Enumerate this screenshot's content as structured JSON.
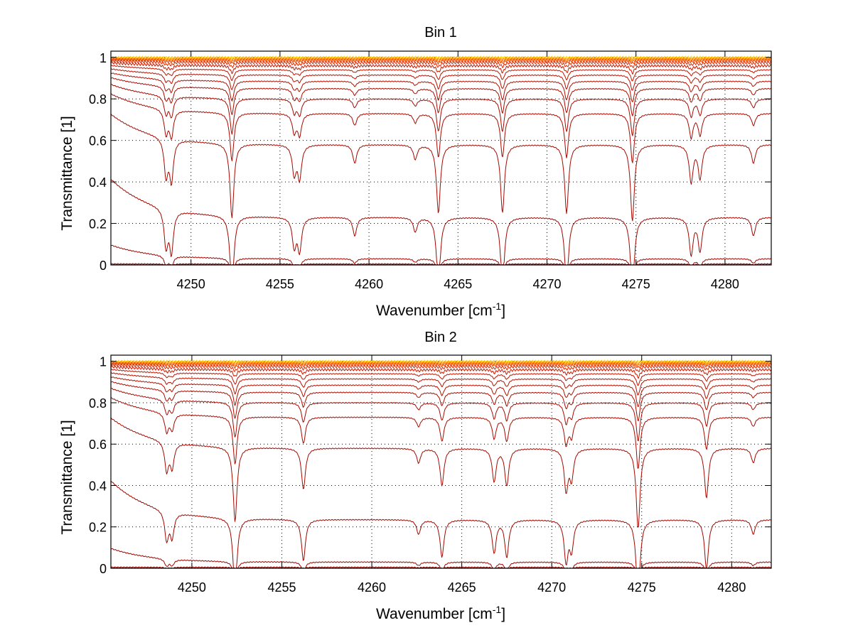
{
  "chart_data": [
    {
      "type": "line",
      "title": "Bin 1",
      "xlabel_main": "Wavenumber [cm",
      "xlabel_sup": "-1",
      "xlabel_end": "]",
      "ylabel": "Transmittance [1]",
      "xlim": [
        4245.5,
        4282.6
      ],
      "ylim": [
        0,
        1.03
      ],
      "xticks": [
        4250,
        4255,
        4260,
        4265,
        4270,
        4275,
        4280
      ],
      "yticks": [
        0,
        0.2,
        0.4,
        0.6,
        0.8,
        1
      ],
      "ytick_labels": [
        "0",
        "0.2",
        "0.4",
        "0.6",
        "0.8",
        "1"
      ],
      "grid": true,
      "absorption_lines": [
        {
          "x": 4248.6,
          "depth": 0.18
        },
        {
          "x": 4248.9,
          "depth": 0.2
        },
        {
          "x": 4252.3,
          "depth": 0.36
        },
        {
          "x": 4255.8,
          "depth": 0.14
        },
        {
          "x": 4256.1,
          "depth": 0.16
        },
        {
          "x": 4259.2,
          "depth": 0.09
        },
        {
          "x": 4262.6,
          "depth": 0.07
        },
        {
          "x": 4263.9,
          "depth": 0.33
        },
        {
          "x": 4267.5,
          "depth": 0.33
        },
        {
          "x": 4271.1,
          "depth": 0.33
        },
        {
          "x": 4274.8,
          "depth": 0.37
        },
        {
          "x": 4278.1,
          "depth": 0.18
        },
        {
          "x": 4278.6,
          "depth": 0.16
        },
        {
          "x": 4281.6,
          "depth": 0.09
        }
      ],
      "series": [
        {
          "baseline": 1.0,
          "color": "#ffe000"
        },
        {
          "baseline": 0.997,
          "color": "#ffc000"
        },
        {
          "baseline": 0.994,
          "color": "#ff9000"
        },
        {
          "baseline": 0.99,
          "color": "#ff6a00"
        },
        {
          "baseline": 0.985,
          "color": "#f04000"
        },
        {
          "baseline": 0.975,
          "color": "#e02800"
        },
        {
          "baseline": 0.96,
          "color": "#cc1a00"
        },
        {
          "baseline": 0.94,
          "color": "#c01400"
        },
        {
          "baseline": 0.915,
          "color": "#b81000"
        },
        {
          "baseline": 0.885,
          "color": "#b01000"
        },
        {
          "baseline": 0.85,
          "color": "#aa0c00"
        },
        {
          "baseline": 0.8,
          "color": "#a80a00"
        },
        {
          "baseline": 0.73,
          "color": "#a60a00"
        },
        {
          "baseline": 0.58,
          "color": "#a40a00"
        },
        {
          "baseline": 0.23,
          "color": "#a00800"
        },
        {
          "baseline": 0.03,
          "color": "#9c0600"
        },
        {
          "baseline": 0.005,
          "color": "#900400"
        },
        {
          "baseline": 0.0,
          "color": "#800000"
        }
      ]
    },
    {
      "type": "line",
      "title": "Bin 2",
      "xlabel_main": "Wavenumber [cm",
      "xlabel_sup": "-1",
      "xlabel_end": "]",
      "ylabel": "Transmittance [1]",
      "xlim": [
        4245.5,
        4282.2
      ],
      "ylim": [
        0,
        1.03
      ],
      "xticks": [
        4250,
        4255,
        4260,
        4265,
        4270,
        4275,
        4280
      ],
      "yticks": [
        0,
        0.2,
        0.4,
        0.6,
        0.8,
        1
      ],
      "ytick_labels": [
        "0",
        "0.2",
        "0.4",
        "0.6",
        "0.8",
        "1"
      ],
      "grid": true,
      "absorption_lines": [
        {
          "x": 4248.6,
          "depth": 0.14
        },
        {
          "x": 4248.9,
          "depth": 0.12
        },
        {
          "x": 4252.4,
          "depth": 0.36
        },
        {
          "x": 4256.2,
          "depth": 0.2
        },
        {
          "x": 4262.6,
          "depth": 0.07
        },
        {
          "x": 4263.9,
          "depth": 0.18
        },
        {
          "x": 4266.8,
          "depth": 0.16
        },
        {
          "x": 4267.5,
          "depth": 0.18
        },
        {
          "x": 4270.8,
          "depth": 0.2
        },
        {
          "x": 4271.1,
          "depth": 0.14
        },
        {
          "x": 4274.8,
          "depth": 0.39
        },
        {
          "x": 4278.6,
          "depth": 0.24
        },
        {
          "x": 4281.2,
          "depth": 0.07
        }
      ],
      "series": [
        {
          "baseline": 1.0,
          "color": "#ffe000"
        },
        {
          "baseline": 0.997,
          "color": "#ffc000"
        },
        {
          "baseline": 0.994,
          "color": "#ff9000"
        },
        {
          "baseline": 0.99,
          "color": "#ff6a00"
        },
        {
          "baseline": 0.985,
          "color": "#f04000"
        },
        {
          "baseline": 0.975,
          "color": "#e02800"
        },
        {
          "baseline": 0.96,
          "color": "#cc1a00"
        },
        {
          "baseline": 0.94,
          "color": "#c01400"
        },
        {
          "baseline": 0.915,
          "color": "#b81000"
        },
        {
          "baseline": 0.885,
          "color": "#b01000"
        },
        {
          "baseline": 0.85,
          "color": "#aa0c00"
        },
        {
          "baseline": 0.8,
          "color": "#a80a00"
        },
        {
          "baseline": 0.73,
          "color": "#a60a00"
        },
        {
          "baseline": 0.58,
          "color": "#a40a00"
        },
        {
          "baseline": 0.235,
          "color": "#a00800"
        },
        {
          "baseline": 0.03,
          "color": "#9c0600"
        },
        {
          "baseline": 0.005,
          "color": "#900400"
        },
        {
          "baseline": 0.0,
          "color": "#800000"
        }
      ]
    }
  ]
}
